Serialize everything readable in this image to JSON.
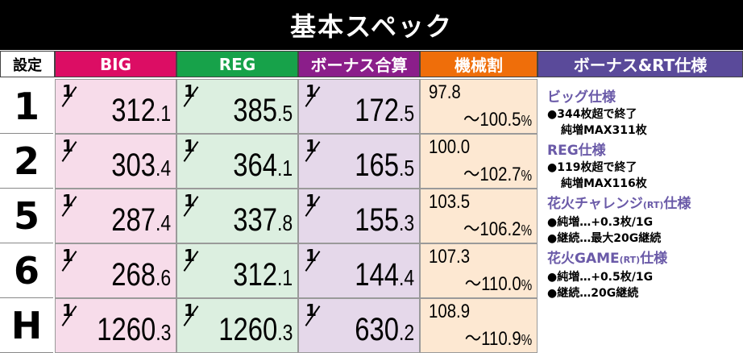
{
  "title": "基本スペック",
  "colors": {
    "big": "#dc0d64",
    "reg": "#17a24a",
    "bonus": "#8b1e8a",
    "payout": "#ef6e0a",
    "spec": "#5a4a9a",
    "big_bg": "#f7dcea",
    "reg_bg": "#dcefe0",
    "bonus_bg": "#e5d8ea",
    "payout_bg": "#fde8d2"
  },
  "headers": {
    "settei": "設定",
    "big": "BIG",
    "reg": "REG",
    "bonus": "ボーナス合算",
    "payout": "機械割",
    "spec": "ボーナス&RT仕様"
  },
  "rows": [
    {
      "setting": "1",
      "big_int": "312",
      "big_dec": ".1",
      "reg_int": "385",
      "reg_dec": ".5",
      "bonus_int": "172",
      "bonus_dec": ".5",
      "payout_low": "97.8",
      "payout_high": "～100.5",
      "pct": "%"
    },
    {
      "setting": "2",
      "big_int": "303",
      "big_dec": ".4",
      "reg_int": "364",
      "reg_dec": ".1",
      "bonus_int": "165",
      "bonus_dec": ".5",
      "payout_low": "100.0",
      "payout_high": "～102.7",
      "pct": "%"
    },
    {
      "setting": "5",
      "big_int": "287",
      "big_dec": ".4",
      "reg_int": "337",
      "reg_dec": ".8",
      "bonus_int": "155",
      "bonus_dec": ".3",
      "payout_low": "103.5",
      "payout_high": "～106.2",
      "pct": "%"
    },
    {
      "setting": "6",
      "big_int": "268",
      "big_dec": ".6",
      "reg_int": "312",
      "reg_dec": ".1",
      "bonus_int": "144",
      "bonus_dec": ".4",
      "payout_low": "107.3",
      "payout_high": "～110.0",
      "pct": "%"
    },
    {
      "setting": "H",
      "big_int": "1260",
      "big_dec": ".3",
      "reg_int": "1260",
      "reg_dec": ".3",
      "bonus_int": "630",
      "bonus_dec": ".2",
      "payout_low": "108.9",
      "payout_high": "～110.9",
      "pct": "%"
    }
  ],
  "spec": {
    "big_head": "ビッグ仕様",
    "big_l1": "●344枚超で終了",
    "big_l2": "純増MAX311枚",
    "reg_head": "REG仕様",
    "reg_l1": "●119枚超で終了",
    "reg_l2": "純増MAX116枚",
    "hanabi_ch_head_a": "花火チャレンジ",
    "hanabi_ch_rt": "(RT)",
    "hanabi_ch_head_b": "仕様",
    "hanabi_ch_l1": "●純増…+0.3枚/1G",
    "hanabi_ch_l2": "●継続…最大20G継続",
    "hanabi_game_head_a": "花火GAME",
    "hanabi_game_rt": "(RT)",
    "hanabi_game_head_b": "仕様",
    "hanabi_game_l1": "●純増…+0.5枚/1G",
    "hanabi_game_l2": "●継続…20G継続"
  }
}
